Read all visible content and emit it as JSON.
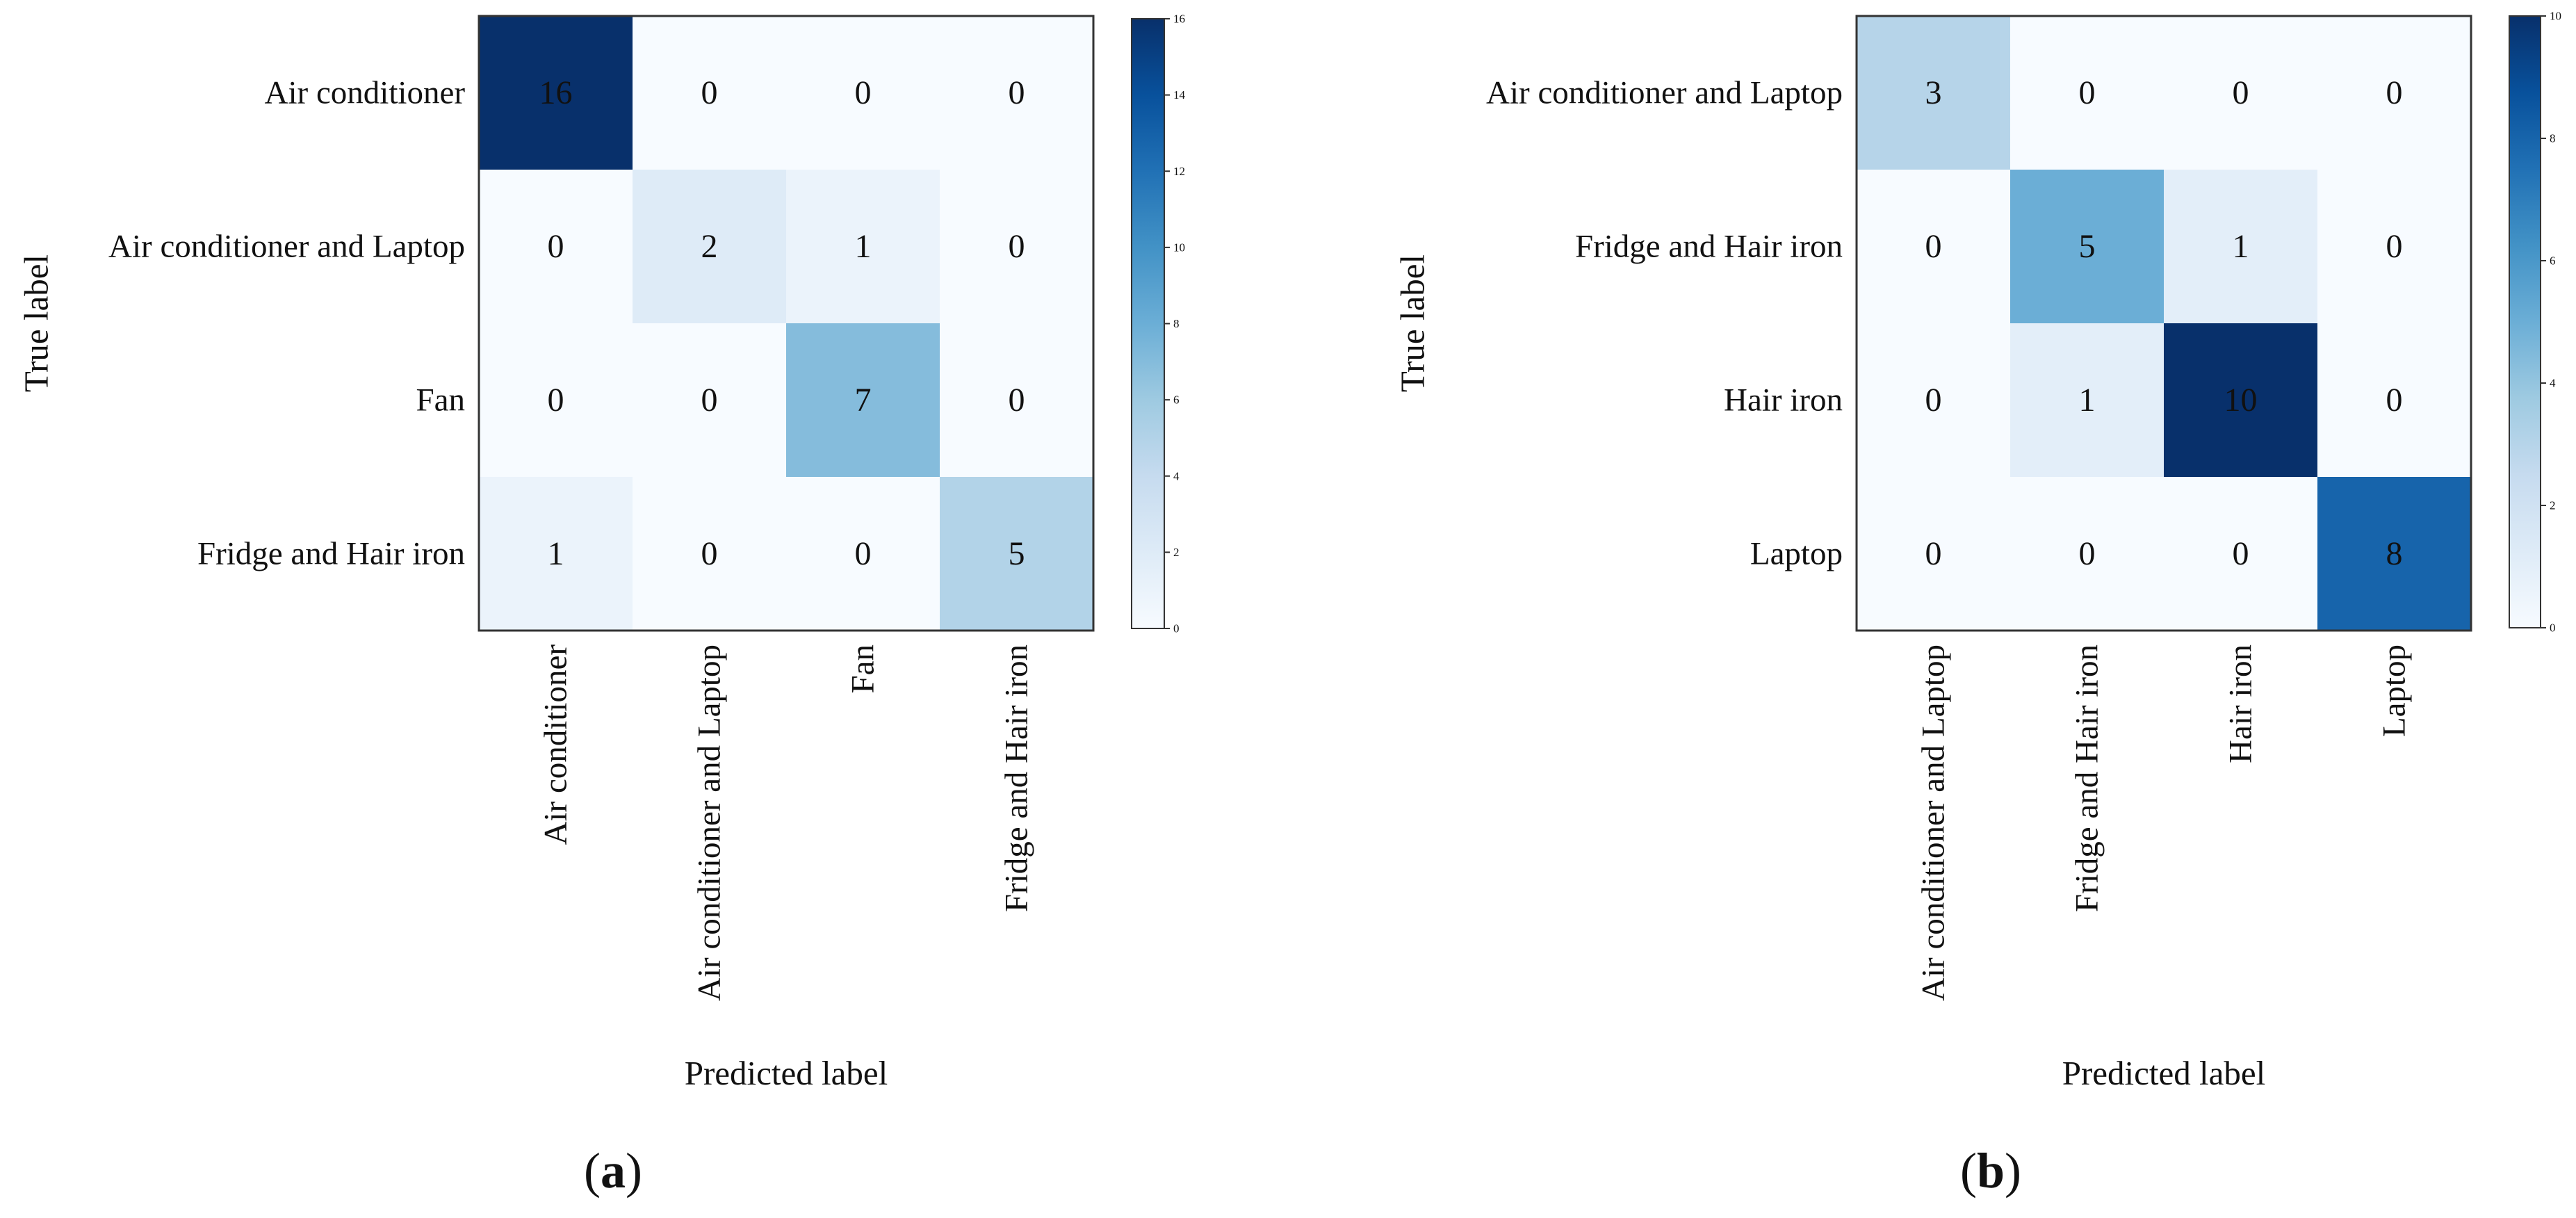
{
  "chart_data": [
    {
      "type": "heatmap",
      "panel": "a",
      "caption": {
        "open": "(",
        "letter": "a",
        "close": ")"
      },
      "xlabel": "Predicted label",
      "ylabel": "True label",
      "row_labels": [
        "Air conditioner",
        "Air conditioner and Laptop",
        "Fan",
        "Fridge and Hair iron"
      ],
      "col_labels": [
        "Air conditioner",
        "Air conditioner and Laptop",
        "Fan",
        "Fridge and Hair iron"
      ],
      "matrix": [
        [
          16,
          0,
          0,
          0
        ],
        [
          0,
          2,
          1,
          0
        ],
        [
          0,
          0,
          7,
          0
        ],
        [
          1,
          0,
          0,
          5
        ]
      ],
      "colorbar": {
        "min": 0,
        "max": 16,
        "ticks": [
          0,
          2,
          4,
          6,
          8,
          10,
          12,
          14,
          16
        ],
        "colormap": "Blues"
      }
    },
    {
      "type": "heatmap",
      "panel": "b",
      "caption": {
        "open": "(",
        "letter": "b",
        "close": ")"
      },
      "xlabel": "Predicted label",
      "ylabel": "True label",
      "row_labels": [
        "Air conditioner and Laptop",
        "Fridge and Hair iron",
        "Hair iron",
        "Laptop"
      ],
      "col_labels": [
        "Air conditioner and Laptop",
        "Fridge and Hair iron",
        "Hair iron",
        "Laptop"
      ],
      "matrix": [
        [
          3,
          0,
          0,
          0
        ],
        [
          0,
          5,
          1,
          0
        ],
        [
          0,
          1,
          10,
          0
        ],
        [
          0,
          0,
          0,
          8
        ]
      ],
      "colorbar": {
        "min": 0,
        "max": 10,
        "ticks": [
          0,
          2,
          4,
          6,
          8,
          10
        ],
        "colormap": "Blues"
      }
    }
  ],
  "colors": {
    "blues": [
      "#f7fbff",
      "#deebf7",
      "#c6dbef",
      "#9ecae1",
      "#6baed6",
      "#4292c6",
      "#2171b5",
      "#08519c",
      "#08306b"
    ],
    "text_dark": "#111111",
    "text_light": "#ffffff",
    "frame": "#333333"
  }
}
